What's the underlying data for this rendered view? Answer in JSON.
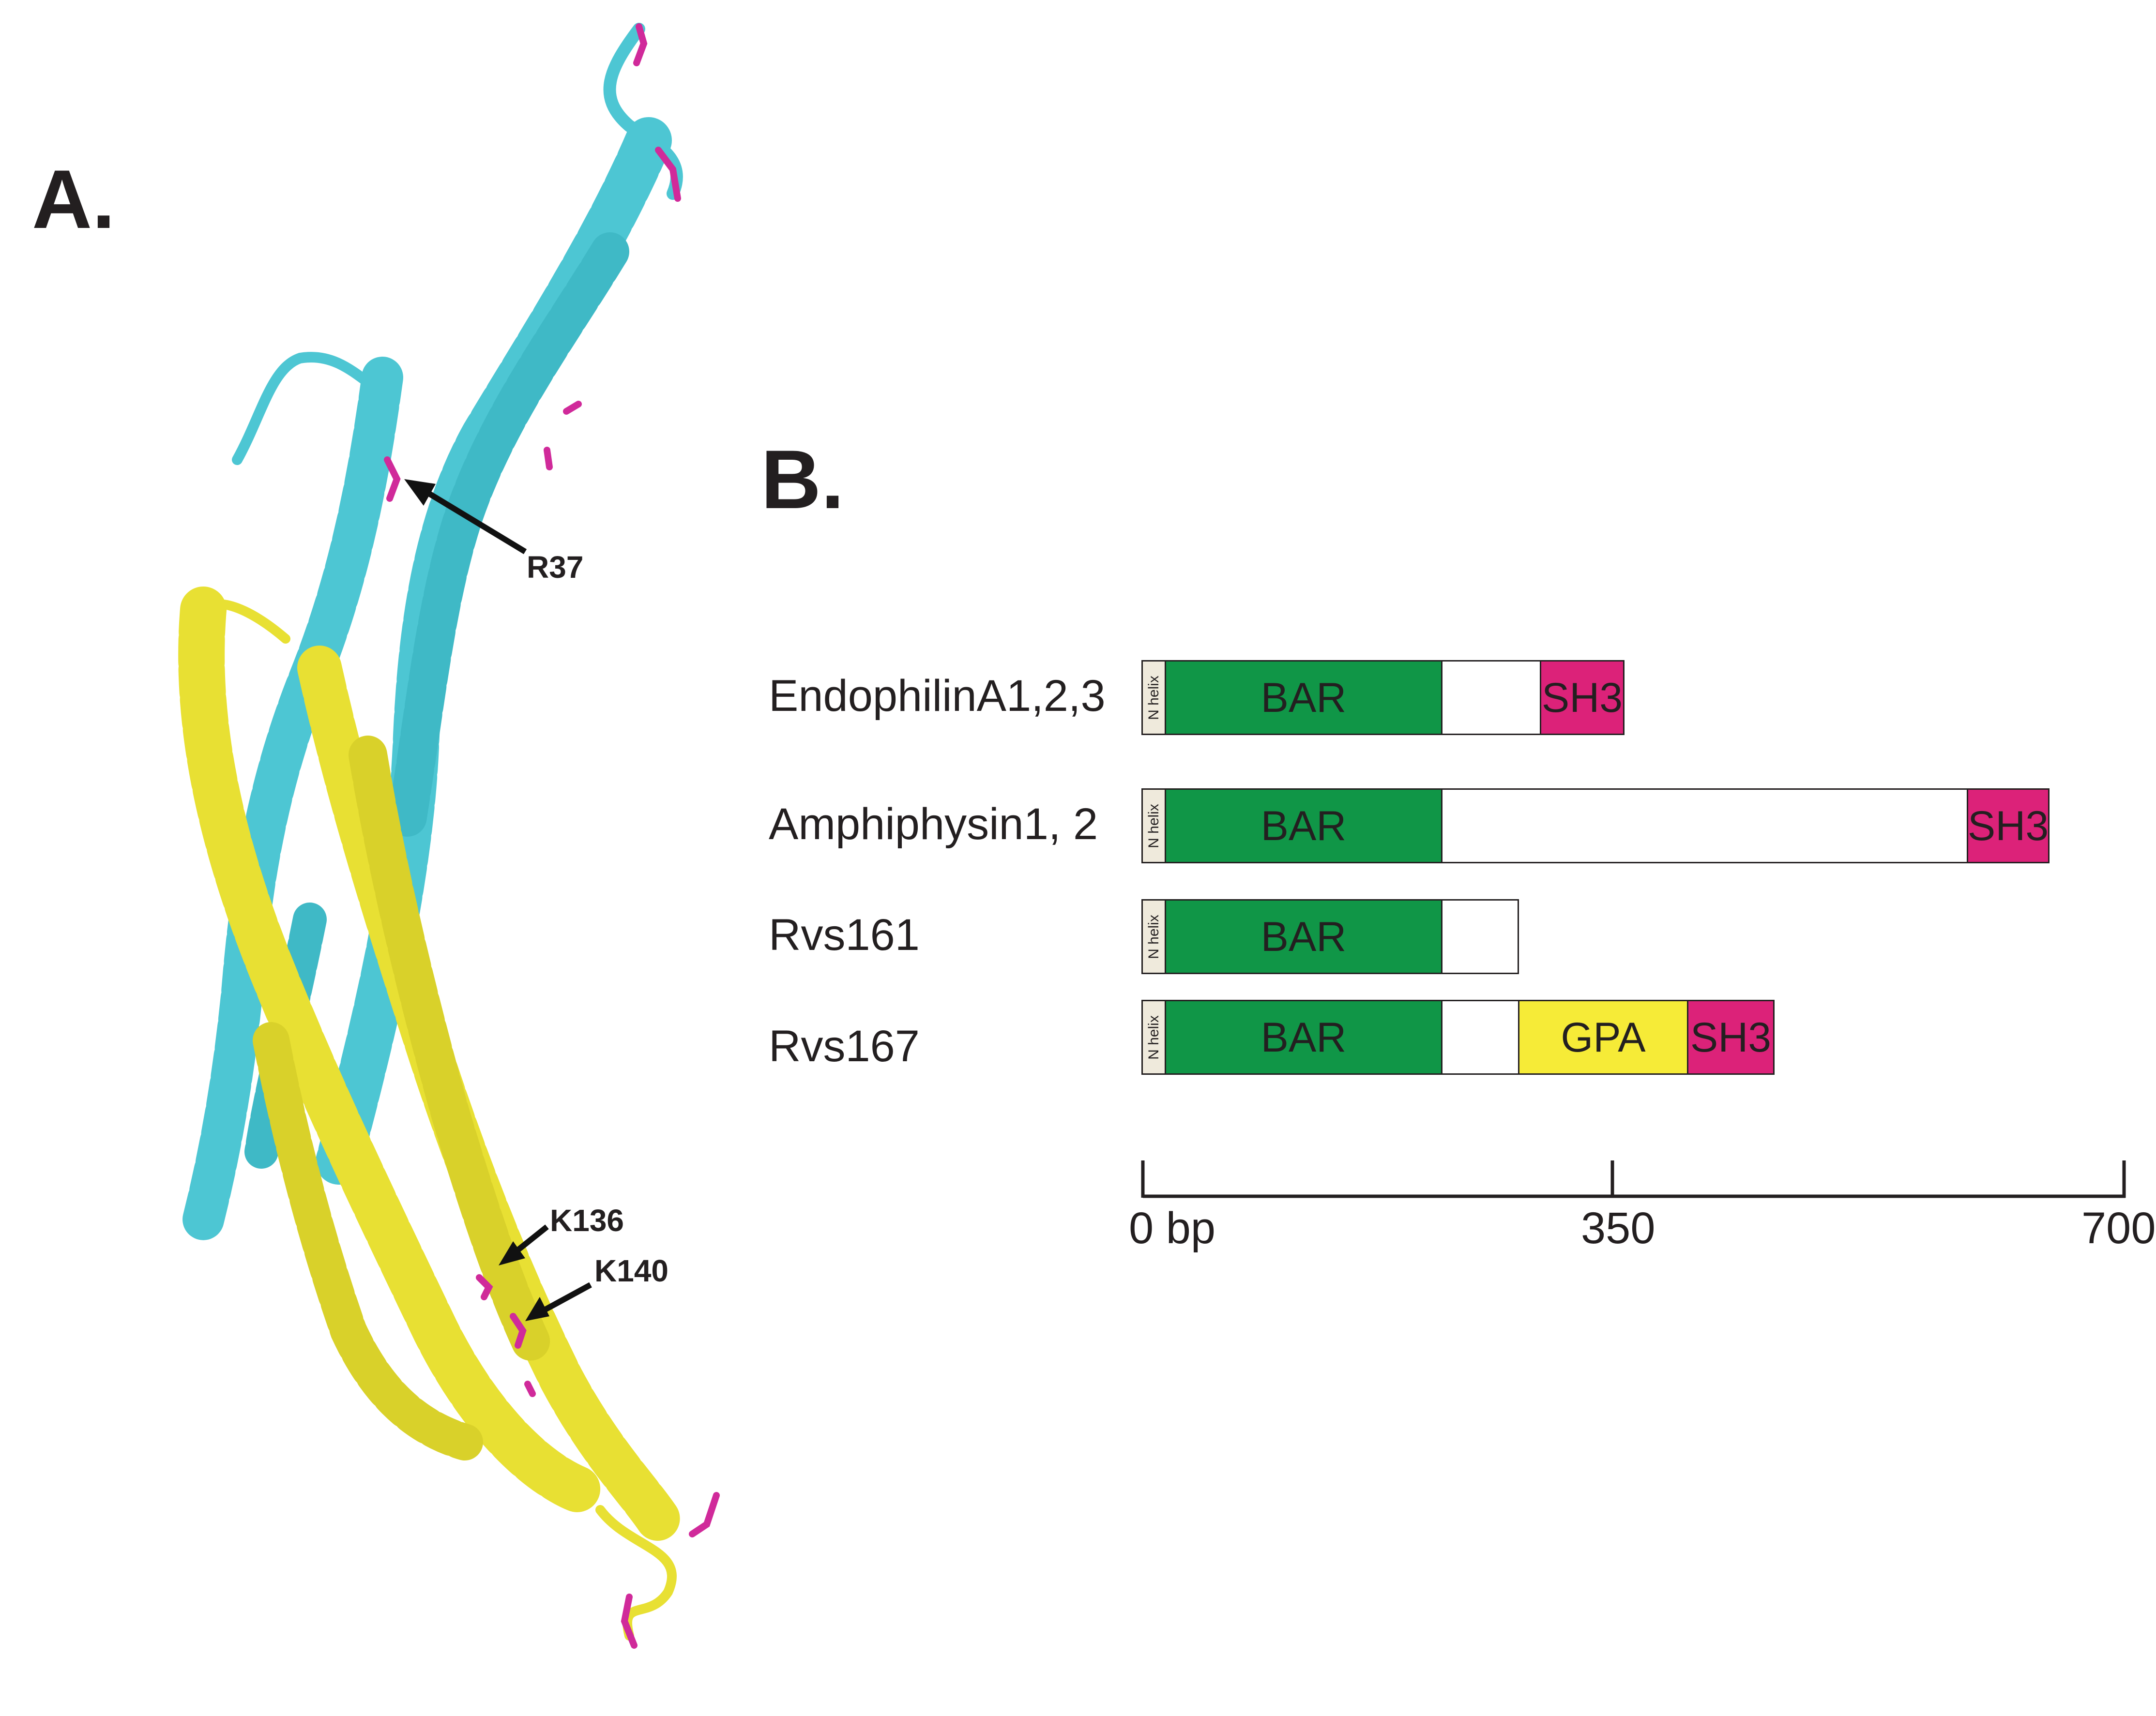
{
  "panel_a": {
    "label": "A.",
    "residues": [
      "R37",
      "K136",
      "K140"
    ],
    "colors": {
      "chain_1": "#4dc6d3",
      "chain_2": "#e8e033",
      "residue_sticks": "#d02a9a"
    }
  },
  "panel_b": {
    "label": "B.",
    "proteins": [
      {
        "name": "EndophilinA1,2,3",
        "domains": [
          "N helix",
          "BAR",
          "SH3"
        ]
      },
      {
        "name": "Amphiphysin1, 2",
        "domains": [
          "N helix",
          "BAR",
          "SH3"
        ]
      },
      {
        "name": "Rvs161",
        "domains": [
          "N helix",
          "BAR"
        ]
      },
      {
        "name": "Rvs167",
        "domains": [
          "N helix",
          "BAR",
          "GPA",
          "SH3"
        ]
      }
    ],
    "scale": {
      "ticks": [
        "0 bp",
        "350",
        "700"
      ],
      "range_bp": [
        0,
        700
      ]
    },
    "colors": {
      "n_helix": "#efeadc",
      "bar": "#109647",
      "sh3": "#dc2279",
      "gpa": "#f6eb37"
    }
  }
}
